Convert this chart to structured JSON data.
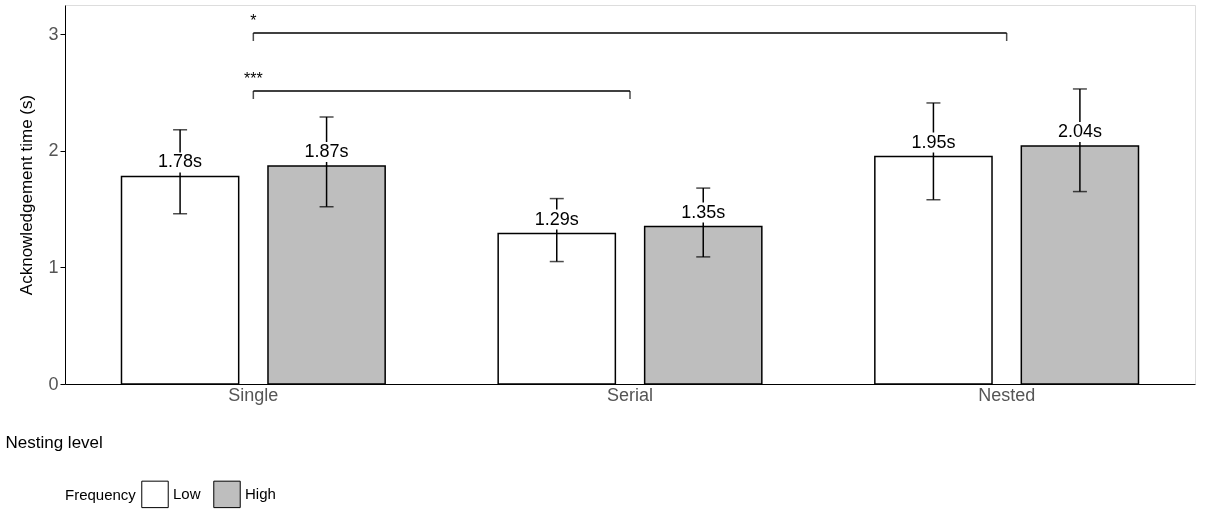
{
  "chart_data": {
    "type": "bar",
    "categories": [
      "Single",
      "Serial",
      "Nested"
    ],
    "xlabel": "Nesting level",
    "ylabel": "Acknowledgement time (s)",
    "legend_title": "Frequency",
    "series": [
      {
        "name": "Low",
        "color": "#ffffff",
        "values": [
          1.78,
          1.29,
          1.95
        ],
        "errors": [
          [
            1.46,
            2.18
          ],
          [
            1.05,
            1.59
          ],
          [
            1.58,
            2.41
          ]
        ],
        "value_labels": [
          "1.78s",
          "1.29s",
          "1.95s"
        ]
      },
      {
        "name": "High",
        "color": "#bebebe",
        "values": [
          1.87,
          1.35,
          2.04
        ],
        "errors": [
          [
            1.52,
            2.29
          ],
          [
            1.09,
            1.68
          ],
          [
            1.65,
            2.53
          ]
        ],
        "value_labels": [
          "1.87s",
          "1.35s",
          "2.04s"
        ]
      }
    ],
    "ylim": [
      0,
      3.25
    ],
    "yticks": [
      0,
      1,
      2,
      3
    ],
    "grid": false,
    "legend": "bottom",
    "annotations": [
      "*",
      "***"
    ]
  }
}
